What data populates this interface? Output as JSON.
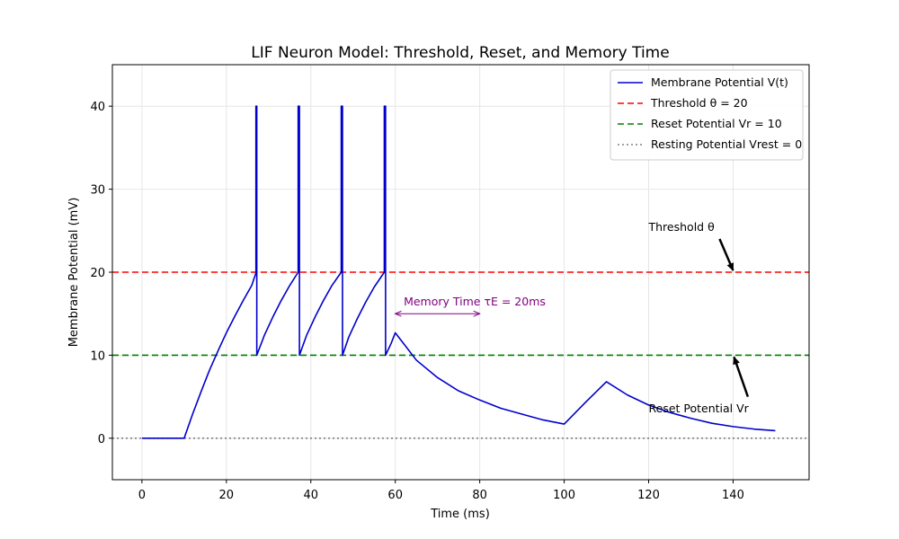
{
  "chart_data": {
    "type": "line",
    "title": "LIF Neuron Model: Threshold, Reset, and Memory Time",
    "xlabel": "Time (ms)",
    "ylabel": "Membrane Potential (mV)",
    "xlim": [
      -7,
      158
    ],
    "ylim": [
      -5,
      45
    ],
    "grid": true,
    "xticks": [
      0,
      20,
      40,
      60,
      80,
      100,
      120,
      140
    ],
    "yticks": [
      0,
      10,
      20,
      30,
      40
    ],
    "legend_position": "top-right",
    "series": [
      {
        "name": "Membrane Potential V(t)",
        "color": "#0000cc",
        "style": "solid",
        "points": [
          [
            0,
            0
          ],
          [
            10,
            0
          ],
          [
            12,
            2.9
          ],
          [
            14,
            5.6
          ],
          [
            16,
            8.2
          ],
          [
            18,
            10.5
          ],
          [
            20,
            12.7
          ],
          [
            22,
            14.7
          ],
          [
            24,
            16.6
          ],
          [
            26,
            18.4
          ],
          [
            27,
            19.9
          ],
          [
            27,
            40
          ],
          [
            27.2,
            40
          ],
          [
            27.2,
            10
          ],
          [
            29,
            12.4
          ],
          [
            31,
            14.6
          ],
          [
            33,
            16.6
          ],
          [
            35,
            18.4
          ],
          [
            37,
            20
          ],
          [
            37,
            40
          ],
          [
            37.3,
            40
          ],
          [
            37.3,
            10
          ],
          [
            39,
            12.4
          ],
          [
            41,
            14.6
          ],
          [
            43,
            16.6
          ],
          [
            45,
            18.4
          ],
          [
            47.2,
            20
          ],
          [
            47.2,
            40
          ],
          [
            47.5,
            40
          ],
          [
            47.5,
            10
          ],
          [
            49,
            12.2
          ],
          [
            51,
            14.4
          ],
          [
            53,
            16.4
          ],
          [
            55,
            18.2
          ],
          [
            57.4,
            20
          ],
          [
            57.4,
            40
          ],
          [
            57.7,
            40
          ],
          [
            57.7,
            10
          ],
          [
            59,
            11.4
          ],
          [
            60,
            12.7
          ],
          [
            65,
            9.4
          ],
          [
            70,
            7.3
          ],
          [
            75,
            5.7
          ],
          [
            80,
            4.6
          ],
          [
            85,
            3.6
          ],
          [
            90,
            2.9
          ],
          [
            95,
            2.2
          ],
          [
            100,
            1.7
          ],
          [
            105,
            4.3
          ],
          [
            110,
            6.8
          ],
          [
            115,
            5.2
          ],
          [
            120,
            4
          ],
          [
            125,
            3.1
          ],
          [
            130,
            2.4
          ],
          [
            135,
            1.8
          ],
          [
            140,
            1.4
          ],
          [
            145,
            1.1
          ],
          [
            150,
            0.9
          ]
        ]
      },
      {
        "name": "Threshold θ = 20",
        "color": "#ff0000",
        "style": "dashed",
        "y": 20
      },
      {
        "name": "Reset Potential Vr = 10",
        "color": "#008000",
        "style": "dashed",
        "y": 10
      },
      {
        "name": "Resting Potential Vrest = 0",
        "color": "#808080",
        "style": "dotted",
        "y": 0
      }
    ],
    "annotations": [
      {
        "text": "Threshold θ",
        "text_at": [
          120,
          25
        ],
        "arrow_to": [
          140,
          20
        ]
      },
      {
        "text": "Reset Potential Vr",
        "text_at": [
          120,
          3
        ],
        "arrow_to": [
          140,
          10
        ]
      },
      {
        "text": "Memory Time τE = 20ms",
        "text_at": [
          62,
          16
        ],
        "span": [
          60,
          80
        ],
        "span_y": 15,
        "color": "#800080"
      }
    ]
  }
}
